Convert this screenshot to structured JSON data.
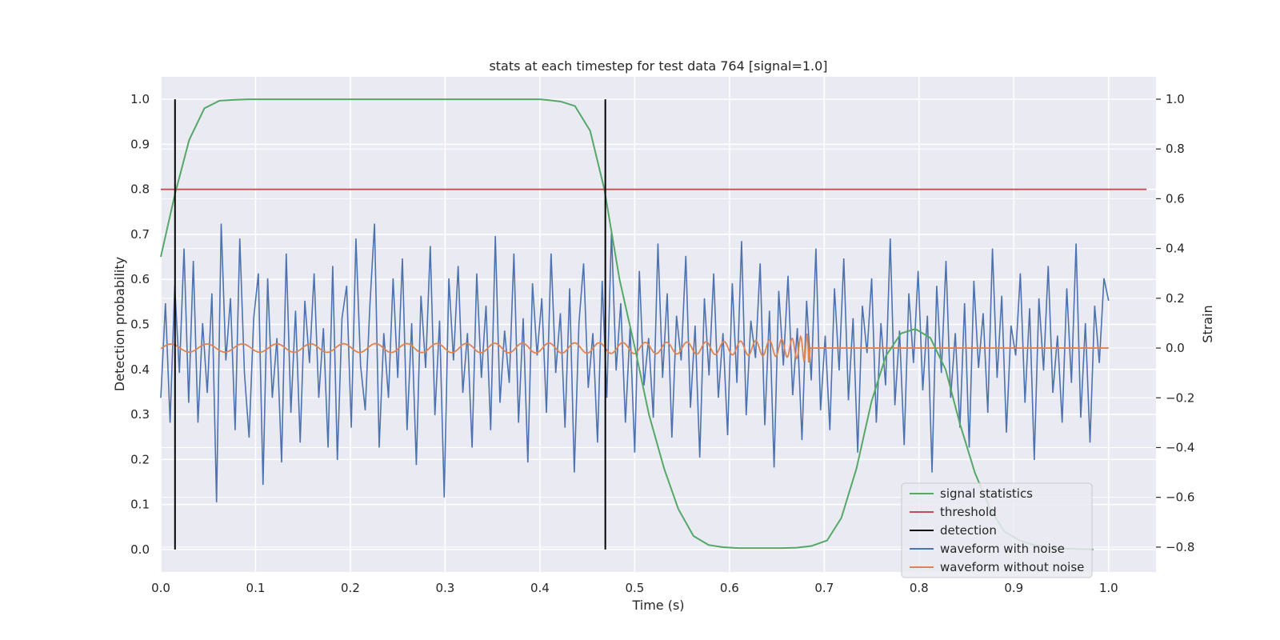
{
  "chart_data": {
    "type": "line",
    "title": "stats at each timestep for test data 764 [signal=1.0]",
    "xlabel": "Time (s)",
    "ylabel": "Detection probability",
    "y2label": "Strain",
    "xlim": [
      0.0,
      1.05
    ],
    "ylim": [
      -0.05,
      1.05
    ],
    "y2lim": [
      -0.9,
      1.09
    ],
    "xticks": [
      0.0,
      0.1,
      0.2,
      0.3,
      0.4,
      0.5,
      0.6,
      0.7,
      0.8,
      0.9,
      1.0
    ],
    "xtick_labels": [
      "0.0",
      "0.1",
      "0.2",
      "0.3",
      "0.4",
      "0.5",
      "0.6",
      "0.7",
      "0.8",
      "0.9",
      "1.0"
    ],
    "yticks": [
      0.0,
      0.1,
      0.2,
      0.3,
      0.4,
      0.5,
      0.6,
      0.7,
      0.8,
      0.9,
      1.0
    ],
    "ytick_labels": [
      "0.0",
      "0.1",
      "0.2",
      "0.3",
      "0.4",
      "0.5",
      "0.6",
      "0.7",
      "0.8",
      "0.9",
      "1.0"
    ],
    "y2ticks": [
      -0.8,
      -0.6,
      -0.4,
      -0.2,
      0.0,
      0.2,
      0.4,
      0.6,
      0.8,
      1.0
    ],
    "y2tick_labels": [
      "−0.8",
      "−0.6",
      "−0.4",
      "−0.2",
      "0.0",
      "0.2",
      "0.4",
      "0.6",
      "0.8",
      "1.0"
    ],
    "grid": true,
    "legend_position": "bottom-right",
    "colors": {
      "plot_background": "#eaeaf2",
      "grid": "#ffffff",
      "signal_statistics": "#55a868",
      "threshold": "#c44e52",
      "detection": "#000000",
      "waveform_with_noise": "#4c72b0",
      "waveform_without_noise": "#dd8452"
    },
    "series": [
      {
        "name": "signal statistics",
        "axis": "left",
        "x": [
          0.0,
          0.015,
          0.03,
          0.046,
          0.062,
          0.078,
          0.093,
          0.109,
          0.125,
          0.2,
          0.3,
          0.4,
          0.41,
          0.422,
          0.437,
          0.453,
          0.468,
          0.484,
          0.5,
          0.515,
          0.531,
          0.546,
          0.562,
          0.578,
          0.593,
          0.609,
          0.625,
          0.64,
          0.656,
          0.671,
          0.687,
          0.703,
          0.718,
          0.734,
          0.75,
          0.765,
          0.781,
          0.796,
          0.812,
          0.828,
          0.843,
          0.859,
          0.875,
          0.89,
          0.906,
          0.921,
          0.937,
          0.953,
          0.968,
          0.984
        ],
        "y": [
          0.65,
          0.79,
          0.91,
          0.98,
          0.997,
          0.999,
          1.0,
          1.0,
          1.0,
          1.0,
          1.0,
          1.0,
          0.998,
          0.995,
          0.985,
          0.93,
          0.8,
          0.6,
          0.45,
          0.3,
          0.18,
          0.09,
          0.03,
          0.01,
          0.005,
          0.003,
          0.003,
          0.003,
          0.003,
          0.004,
          0.008,
          0.02,
          0.07,
          0.18,
          0.33,
          0.43,
          0.48,
          0.49,
          0.47,
          0.4,
          0.28,
          0.17,
          0.09,
          0.04,
          0.02,
          0.01,
          0.005,
          0.002,
          0.001,
          0.0
        ]
      },
      {
        "name": "threshold",
        "axis": "left",
        "x": [
          0.0,
          1.04
        ],
        "y": [
          0.8,
          0.8
        ]
      },
      {
        "name": "detection",
        "axis": "left",
        "x_positions": [
          0.015,
          0.469
        ],
        "y_range": [
          0.0,
          1.0
        ]
      },
      {
        "name": "waveform with noise",
        "axis": "right",
        "x_start": 0.0,
        "x_end": 1.0,
        "y": [
          -0.2,
          0.18,
          -0.3,
          0.25,
          -0.1,
          0.4,
          -0.22,
          0.35,
          -0.3,
          0.1,
          -0.18,
          0.22,
          -0.62,
          0.5,
          -0.05,
          0.2,
          -0.33,
          0.44,
          -0.1,
          -0.36,
          0.12,
          0.3,
          -0.55,
          0.28,
          -0.2,
          0.04,
          -0.46,
          0.38,
          -0.26,
          0.15,
          -0.38,
          0.19,
          -0.06,
          0.3,
          -0.2,
          0.08,
          -0.4,
          0.33,
          -0.45,
          0.12,
          0.25,
          -0.32,
          0.44,
          -0.07,
          -0.25,
          0.17,
          0.5,
          -0.4,
          0.06,
          -0.2,
          0.28,
          -0.12,
          0.36,
          -0.33,
          0.1,
          -0.47,
          0.21,
          -0.08,
          0.41,
          -0.27,
          0.11,
          -0.6,
          0.28,
          -0.05,
          0.33,
          -0.18,
          0.06,
          -0.4,
          0.3,
          -0.12,
          0.17,
          -0.33,
          0.45,
          -0.22,
          0.07,
          -0.14,
          0.38,
          -0.3,
          0.12,
          -0.46,
          0.26,
          -0.03,
          0.2,
          -0.26,
          0.38,
          -0.1,
          0.14,
          -0.32,
          0.24,
          -0.5,
          0.1,
          0.34,
          -0.16,
          0.06,
          -0.38,
          0.27,
          -0.2,
          0.47,
          -0.09,
          0.18,
          -0.3,
          0.08,
          -0.42,
          0.31,
          -0.15,
          0.04,
          -0.28,
          0.42,
          -0.12,
          0.22,
          -0.36,
          0.13,
          -0.05,
          0.37,
          -0.24,
          0.09,
          -0.44,
          0.2,
          -0.11,
          0.3,
          -0.2,
          0.06,
          -0.35,
          0.26,
          -0.14,
          0.43,
          -0.27,
          0.11,
          -0.04,
          0.34,
          -0.31,
          0.15,
          -0.48,
          0.23,
          -0.07,
          0.29,
          -0.19,
          0.08,
          -0.37,
          0.19,
          -0.13,
          0.4,
          -0.25,
          0.05,
          -0.33,
          0.24,
          -0.09,
          0.36,
          -0.21,
          0.12,
          -0.42,
          0.17,
          -0.02,
          0.28,
          -0.3,
          0.1,
          -0.15,
          0.44,
          -0.23,
          0.07,
          -0.39,
          0.22,
          -0.06,
          0.31,
          -0.17,
          0.13,
          -0.5,
          0.25,
          -0.1,
          0.35,
          -0.2,
          0.06,
          -0.32,
          0.18,
          -0.4,
          0.27,
          -0.08,
          0.14,
          -0.26,
          0.4,
          -0.12,
          0.21,
          -0.34,
          0.09,
          -0.03,
          0.3,
          -0.22,
          0.16,
          -0.45,
          0.2,
          -0.09,
          0.33,
          -0.18,
          0.05,
          -0.3,
          0.24,
          -0.14,
          0.42,
          -0.28,
          0.1,
          -0.38,
          0.17,
          -0.06,
          0.28,
          0.19
        ]
      },
      {
        "name": "waveform without noise",
        "axis": "right",
        "chirp_end_time": 0.685,
        "x_start": 0.0,
        "x_end": 1.0,
        "y_after_merger": 0.0
      }
    ]
  }
}
